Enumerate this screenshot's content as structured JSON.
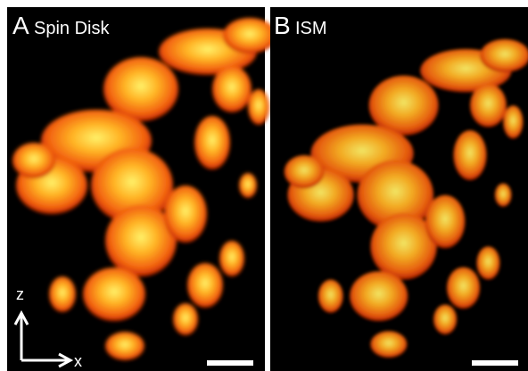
{
  "panels": [
    {
      "letter": "A",
      "label": "Spin Disk"
    },
    {
      "letter": "B",
      "label": "ISM"
    }
  ],
  "axes": {
    "vertical": "z",
    "horizontal": "x"
  }
}
